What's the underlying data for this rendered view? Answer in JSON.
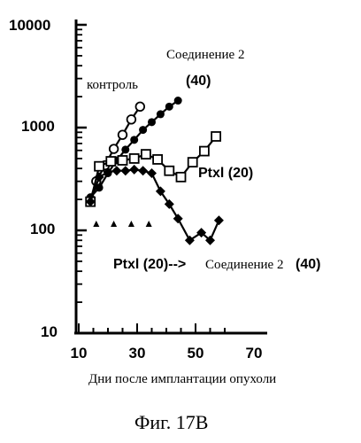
{
  "chart_data": {
    "type": "line",
    "scale": {
      "y": "log",
      "x": "linear"
    },
    "xlim": [
      10,
      70
    ],
    "ylim": [
      10,
      10000
    ],
    "xticks": [
      "10",
      "30",
      "50",
      "70"
    ],
    "yticks": [
      "10",
      "100",
      "1000",
      "10000"
    ],
    "xlabel": "Дни после имплантации опухоли",
    "caption": "Фиг. 17B",
    "grid": false,
    "annotations": {
      "control": "контроль",
      "compound2_line1": "Соединение 2",
      "compound2_line2": "(40)",
      "ptxl": "Ptxl (20)",
      "sequence_a": "Ptxl (20)-->",
      "sequence_b": "Соединение 2",
      "sequence_c": "(40)"
    },
    "series": [
      {
        "marker": "open-circle",
        "x": [
          14,
          16,
          19,
          22,
          25,
          28,
          31
        ],
        "y": [
          200,
          300,
          430,
          620,
          850,
          1200,
          1600
        ]
      },
      {
        "marker": "filled-circle",
        "x": [
          14,
          17,
          20,
          23,
          26,
          29,
          32,
          35,
          38,
          41,
          44
        ],
        "y": [
          210,
          260,
          360,
          480,
          610,
          760,
          950,
          1130,
          1350,
          1600,
          1830
        ]
      },
      {
        "marker": "open-square",
        "x": [
          14,
          17,
          21,
          25,
          29,
          33,
          37,
          41,
          45,
          49,
          53,
          57
        ],
        "y": [
          190,
          420,
          470,
          480,
          500,
          550,
          490,
          380,
          330,
          460,
          590,
          820
        ]
      },
      {
        "marker": "filled-diamond",
        "x": [
          14,
          17,
          20,
          23,
          26,
          29,
          32,
          35,
          38,
          41,
          44,
          48,
          52,
          55,
          58
        ],
        "y": [
          190,
          330,
          370,
          380,
          380,
          390,
          380,
          360,
          240,
          180,
          130,
          80,
          95,
          80,
          125
        ]
      }
    ],
    "treatment_markers": {
      "marker": "filled-triangle",
      "x": [
        16,
        22,
        28,
        34
      ],
      "y": [
        115,
        115,
        115,
        115
      ]
    }
  }
}
